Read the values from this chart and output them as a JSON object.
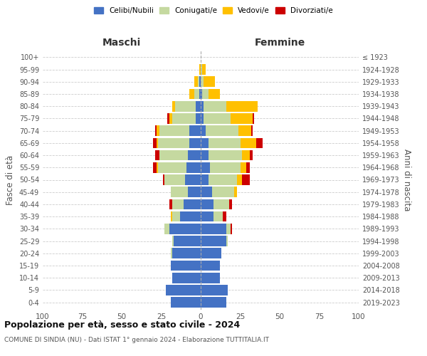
{
  "age_groups": [
    "0-4",
    "5-9",
    "10-14",
    "15-19",
    "20-24",
    "25-29",
    "30-34",
    "35-39",
    "40-44",
    "45-49",
    "50-54",
    "55-59",
    "60-64",
    "65-69",
    "70-74",
    "75-79",
    "80-84",
    "85-89",
    "90-94",
    "95-99",
    "100+"
  ],
  "birth_years": [
    "2019-2023",
    "2014-2018",
    "2009-2013",
    "2004-2008",
    "1999-2003",
    "1994-1998",
    "1989-1993",
    "1984-1988",
    "1979-1983",
    "1974-1978",
    "1969-1973",
    "1964-1968",
    "1959-1963",
    "1954-1958",
    "1949-1953",
    "1944-1948",
    "1939-1943",
    "1934-1938",
    "1929-1933",
    "1924-1928",
    "≤ 1923"
  ],
  "colors": {
    "celibi": "#4472c4",
    "coniugati": "#c5d9a0",
    "vedovi": "#ffc000",
    "divorziati": "#cc0000"
  },
  "maschi": {
    "celibi": [
      19,
      22,
      18,
      19,
      18,
      17,
      20,
      13,
      11,
      8,
      10,
      9,
      8,
      7,
      7,
      3,
      3,
      1,
      1,
      0,
      0
    ],
    "coniugati": [
      0,
      0,
      0,
      0,
      1,
      1,
      3,
      5,
      7,
      11,
      13,
      18,
      18,
      20,
      19,
      15,
      13,
      3,
      1,
      0,
      0
    ],
    "vedovi": [
      0,
      0,
      0,
      0,
      0,
      0,
      0,
      1,
      0,
      0,
      0,
      1,
      0,
      1,
      2,
      2,
      2,
      3,
      2,
      1,
      0
    ],
    "divorziati": [
      0,
      0,
      0,
      0,
      0,
      0,
      0,
      0,
      2,
      0,
      1,
      2,
      3,
      2,
      1,
      1,
      0,
      0,
      0,
      0,
      0
    ]
  },
  "femmine": {
    "celibi": [
      16,
      17,
      12,
      12,
      13,
      16,
      16,
      8,
      8,
      7,
      5,
      6,
      5,
      5,
      3,
      2,
      2,
      1,
      0,
      0,
      0
    ],
    "coniugati": [
      0,
      0,
      0,
      0,
      0,
      1,
      3,
      6,
      10,
      14,
      18,
      19,
      21,
      20,
      21,
      17,
      14,
      4,
      2,
      1,
      0
    ],
    "vedovi": [
      0,
      0,
      0,
      0,
      0,
      0,
      0,
      0,
      0,
      2,
      3,
      4,
      5,
      10,
      8,
      14,
      20,
      7,
      7,
      2,
      0
    ],
    "divorziati": [
      0,
      0,
      0,
      0,
      0,
      0,
      1,
      2,
      2,
      0,
      5,
      2,
      2,
      4,
      1,
      1,
      0,
      0,
      0,
      0,
      0
    ]
  },
  "title": "Popolazione per età, sesso e stato civile - 2024",
  "subtitle": "COMUNE DI SINDIA (NU) - Dati ISTAT 1° gennaio 2024 - Elaborazione TUTTITALIA.IT",
  "xlabel_left": "Maschi",
  "xlabel_right": "Femmine",
  "ylabel_left": "Fasce di età",
  "ylabel_right": "Anni di nascita",
  "xlim": 100,
  "background_color": "#ffffff",
  "grid_color": "#cccccc"
}
